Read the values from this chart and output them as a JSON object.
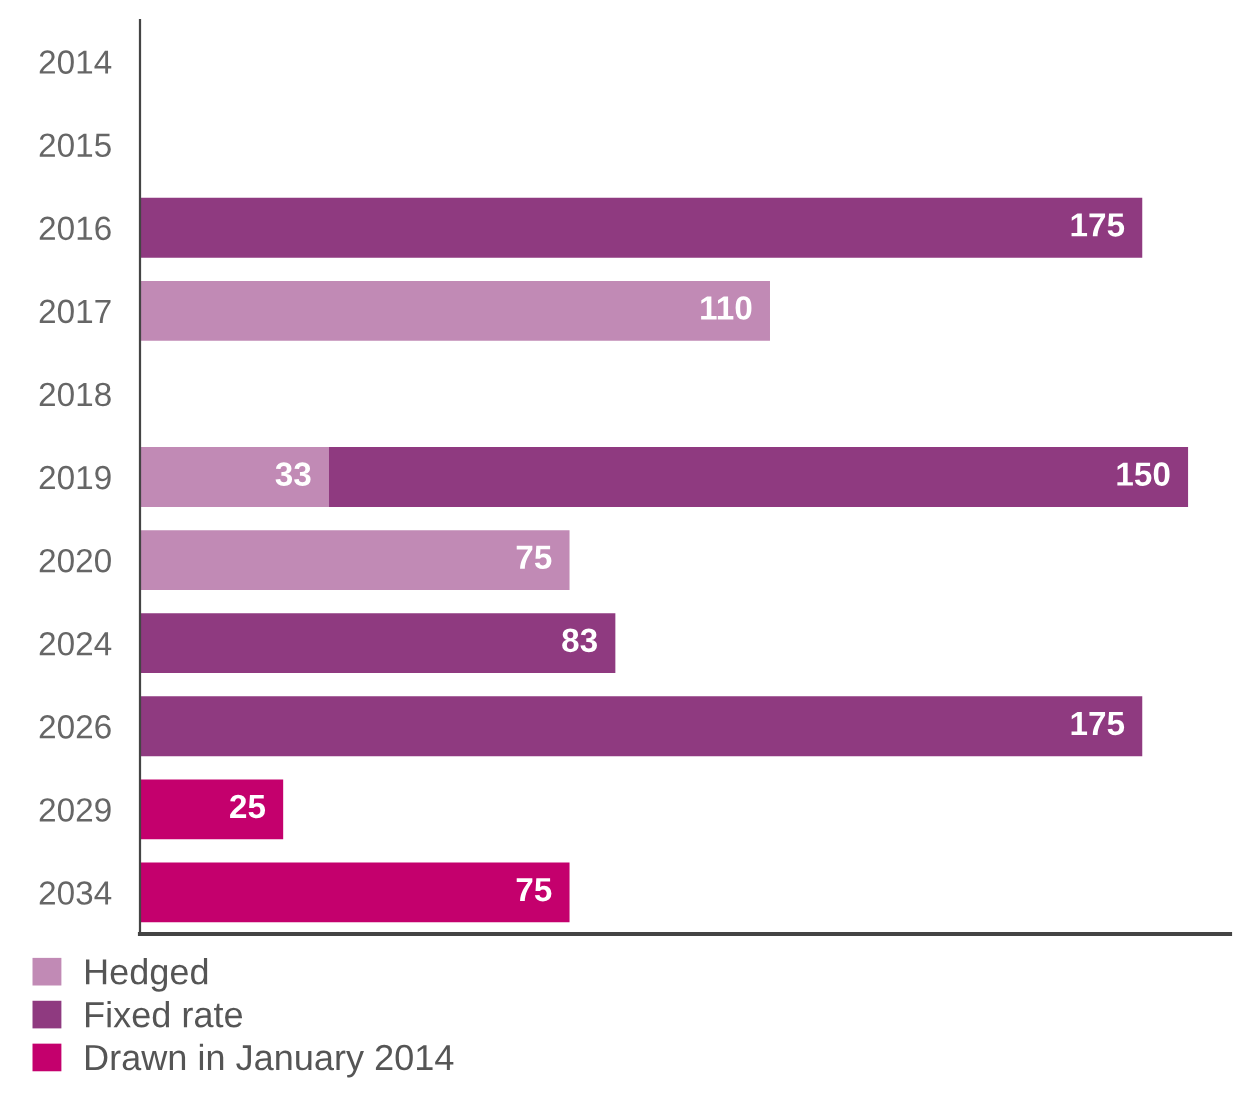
{
  "chart_data": {
    "type": "bar",
    "orientation": "horizontal",
    "stacked": true,
    "data_labels": true,
    "legend": "bottom left",
    "grid": false,
    "categories": [
      "2014",
      "2015",
      "2016",
      "2017",
      "2018",
      "2019",
      "2020",
      "2024",
      "2026",
      "2029",
      "2034"
    ],
    "series": [
      {
        "name": "Hedged",
        "color": "#c18ab5",
        "values": [
          null,
          null,
          null,
          110,
          null,
          33,
          75,
          null,
          null,
          null,
          null
        ]
      },
      {
        "name": "Fixed rate",
        "color": "#8f3a80",
        "values": [
          null,
          null,
          175,
          null,
          null,
          150,
          null,
          83,
          175,
          null,
          null
        ]
      },
      {
        "name": "Drawn in January 2014",
        "color": "#c4006d",
        "values": [
          null,
          null,
          null,
          null,
          null,
          null,
          null,
          null,
          null,
          25,
          75
        ]
      }
    ]
  }
}
